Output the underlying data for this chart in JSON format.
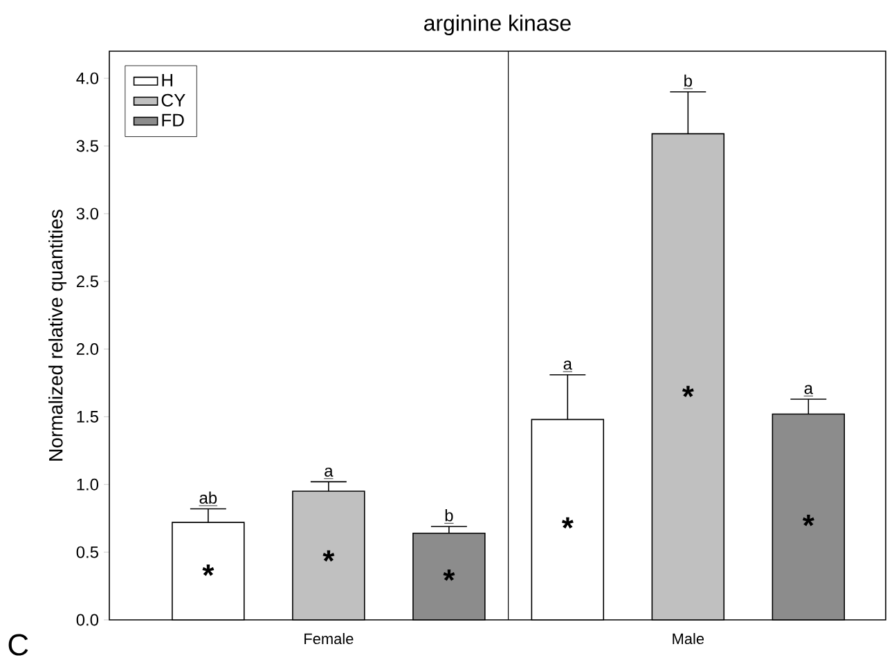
{
  "chart_data": {
    "type": "bar",
    "title": "arginine kinase",
    "ylabel": "Normalized relative quantities",
    "categories": [
      "Female",
      "Male"
    ],
    "series": [
      {
        "name": "H",
        "color": "#ffffff",
        "values": [
          0.72,
          1.48
        ],
        "errors": [
          [
            0.72,
            0.82
          ],
          [
            1.48,
            1.81
          ]
        ]
      },
      {
        "name": "CY",
        "color": "#c0c0c0",
        "values": [
          0.95,
          3.59
        ],
        "errors": [
          [
            0.95,
            1.02
          ],
          [
            3.59,
            3.9
          ]
        ]
      },
      {
        "name": "FD",
        "color": "#8c8c8c",
        "values": [
          0.64,
          1.52
        ],
        "errors": [
          [
            0.64,
            0.69
          ],
          [
            1.52,
            1.63
          ]
        ]
      }
    ],
    "ylim": [
      0,
      4.2
    ],
    "yticks": [
      {
        "value": 0,
        "label": "0.0"
      },
      {
        "value": 0.5,
        "label": "0.5"
      },
      {
        "value": 1,
        "label": "1.0"
      },
      {
        "value": 1.5,
        "label": "1.5"
      },
      {
        "value": 2,
        "label": "2.0"
      },
      {
        "value": 2.5,
        "label": "2.5"
      },
      {
        "value": 3,
        "label": "3.0"
      },
      {
        "value": 3.5,
        "label": "3.5"
      },
      {
        "value": 4,
        "label": "4.0"
      }
    ],
    "legend": "top left",
    "grid": false,
    "annotations": [
      "ab",
      "a",
      "b",
      "a",
      "b",
      "a",
      "*",
      "*",
      "*",
      "*",
      "*",
      "*",
      "C"
    ]
  }
}
